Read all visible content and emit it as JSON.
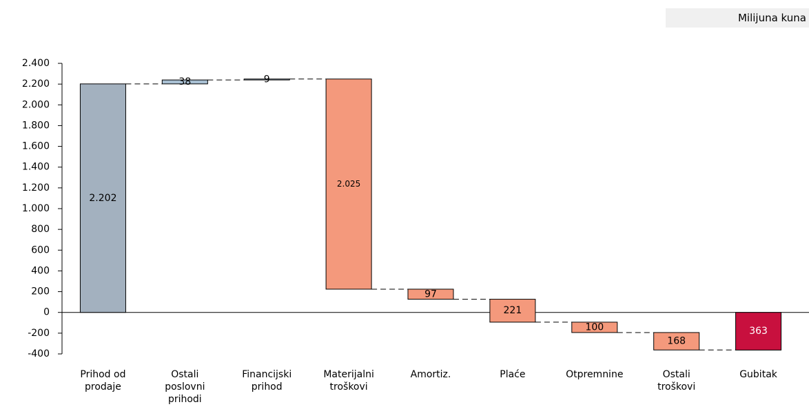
{
  "chart_data": {
    "type": "waterfall",
    "unit_label": "Milijuna kuna",
    "categories": [
      "Prihod od prodaje",
      "Ostali poslovni prihodi",
      "Financijski prihod",
      "Materijalni troškovi",
      "Amortiz.",
      "Plaće",
      "Otpremnine",
      "Ostali troškovi",
      "Gubitak"
    ],
    "values": [
      2202,
      38,
      9,
      -2025,
      -97,
      -221,
      -100,
      -168,
      -363
    ],
    "value_labels": [
      "2.202",
      "38",
      "9",
      "2.025",
      "97",
      "221",
      "100",
      "168",
      "363"
    ],
    "measures": [
      "absolute",
      "relative",
      "relative",
      "relative",
      "relative",
      "relative",
      "relative",
      "relative",
      "total"
    ],
    "colors": [
      "#a3b1bf",
      "#a9c0d3",
      "#a9c0d3",
      "#f4997c",
      "#f4997c",
      "#f4997c",
      "#f4997c",
      "#f4997c",
      "#c8103e"
    ],
    "ylim": [
      -400,
      2400
    ],
    "yticks": [
      -400,
      -200,
      0,
      200,
      400,
      600,
      800,
      {
        "value": 1000,
        "label": "1.000"
      },
      {
        "value": 1200,
        "label": "1.200"
      },
      {
        "value": 1400,
        "label": "1.400"
      },
      {
        "value": 1600,
        "label": "1.600"
      },
      {
        "value": 1800,
        "label": "1.800"
      },
      {
        "value": 2000,
        "label": "2.000"
      },
      {
        "value": 2200,
        "label": "2.200"
      },
      {
        "value": 2400,
        "label": "2.400"
      }
    ]
  }
}
